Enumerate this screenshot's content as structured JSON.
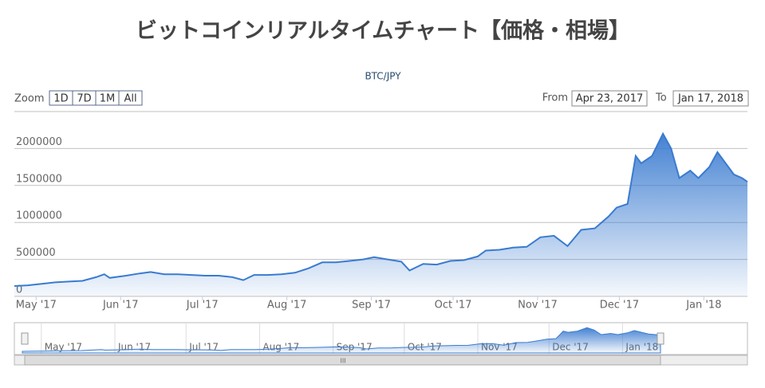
{
  "chart_data": {
    "type": "area",
    "title": "ビットコインリアルタイムチャート【価格・相場】",
    "subtitle": "BTC/JPY",
    "range_selector": {
      "zoom_label": "Zoom",
      "buttons": [
        "1D",
        "7D",
        "1M",
        "All"
      ],
      "from_label": "From",
      "from": "Apr 23, 2017",
      "to_label": "To",
      "to": "Jan 17, 2018"
    },
    "color": "#3a7bd0",
    "xlim": [
      "2017-04-23",
      "2018-01-17"
    ],
    "xticks": [
      {
        "value": "2017-05-01",
        "label": "May '17"
      },
      {
        "value": "2017-06-01",
        "label": "Jun '17"
      },
      {
        "value": "2017-07-01",
        "label": "Jul '17"
      },
      {
        "value": "2017-08-01",
        "label": "Aug '17"
      },
      {
        "value": "2017-09-01",
        "label": "Sep '17"
      },
      {
        "value": "2017-10-01",
        "label": "Oct '17"
      },
      {
        "value": "2017-11-01",
        "label": "Nov '17"
      },
      {
        "value": "2017-12-01",
        "label": "Dec '17"
      },
      {
        "value": "2018-01-01",
        "label": "Jan '18"
      }
    ],
    "ylim": [
      0,
      2500000
    ],
    "yticks": [
      0,
      500000,
      1000000,
      1500000,
      2000000
    ],
    "grid": true,
    "x": [
      "2017-04-23",
      "2017-04-28",
      "2017-05-03",
      "2017-05-08",
      "2017-05-13",
      "2017-05-18",
      "2017-05-23",
      "2017-05-26",
      "2017-05-28",
      "2017-06-03",
      "2017-06-08",
      "2017-06-12",
      "2017-06-17",
      "2017-06-22",
      "2017-06-27",
      "2017-07-02",
      "2017-07-07",
      "2017-07-12",
      "2017-07-16",
      "2017-07-20",
      "2017-07-25",
      "2017-07-30",
      "2017-08-04",
      "2017-08-09",
      "2017-08-14",
      "2017-08-19",
      "2017-08-24",
      "2017-08-29",
      "2017-09-02",
      "2017-09-07",
      "2017-09-12",
      "2017-09-15",
      "2017-09-20",
      "2017-09-25",
      "2017-09-30",
      "2017-10-05",
      "2017-10-10",
      "2017-10-13",
      "2017-10-18",
      "2017-10-23",
      "2017-10-28",
      "2017-11-02",
      "2017-11-07",
      "2017-11-12",
      "2017-11-17",
      "2017-11-22",
      "2017-11-27",
      "2017-11-30",
      "2017-12-04",
      "2017-12-07",
      "2017-12-09",
      "2017-12-13",
      "2017-12-17",
      "2017-12-20",
      "2017-12-23",
      "2017-12-27",
      "2017-12-30",
      "2018-01-03",
      "2018-01-06",
      "2018-01-09",
      "2018-01-12",
      "2018-01-15",
      "2018-01-17"
    ],
    "values": [
      140000,
      150000,
      170000,
      190000,
      200000,
      210000,
      260000,
      300000,
      250000,
      280000,
      310000,
      330000,
      300000,
      300000,
      290000,
      280000,
      280000,
      260000,
      220000,
      290000,
      290000,
      300000,
      320000,
      380000,
      460000,
      460000,
      480000,
      500000,
      530000,
      500000,
      470000,
      350000,
      440000,
      430000,
      480000,
      490000,
      540000,
      620000,
      630000,
      660000,
      670000,
      800000,
      820000,
      680000,
      900000,
      920000,
      1080000,
      1200000,
      1250000,
      1900000,
      1800000,
      1900000,
      2200000,
      2000000,
      1600000,
      1700000,
      1600000,
      1750000,
      1950000,
      1800000,
      1650000,
      1600000,
      1550000
    ]
  }
}
